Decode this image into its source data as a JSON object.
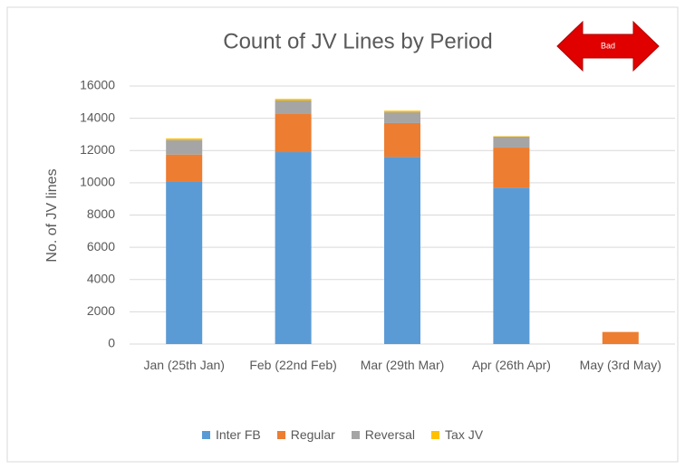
{
  "chart_data": {
    "type": "stacked_bar",
    "title": "Count of JV Lines by Period",
    "annotation": "Bad",
    "y_axis_label": "No. of JV lines",
    "categories": [
      "Jan (25th Jan)",
      "Feb (22nd Feb)",
      "Mar (29th Mar)",
      "Apr (26th Apr)",
      "May (3rd May)"
    ],
    "series": [
      {
        "name": "Inter FB",
        "color": "#5b9bd5",
        "values": [
          10100,
          11900,
          11600,
          9700,
          0
        ]
      },
      {
        "name": "Regular",
        "color": "#ed7d31",
        "values": [
          1650,
          2360,
          2100,
          2480,
          750
        ]
      },
      {
        "name": "Reversal",
        "color": "#a5a5a5",
        "values": [
          900,
          840,
          670,
          680,
          0
        ]
      },
      {
        "name": "Tax JV",
        "color": "#ffc000",
        "values": [
          100,
          100,
          100,
          30,
          0
        ]
      }
    ],
    "ylim": [
      0,
      16000
    ],
    "yticks": [
      0,
      2000,
      4000,
      6000,
      8000,
      10000,
      12000,
      14000,
      16000
    ],
    "grid": true,
    "legend": "bottom"
  }
}
